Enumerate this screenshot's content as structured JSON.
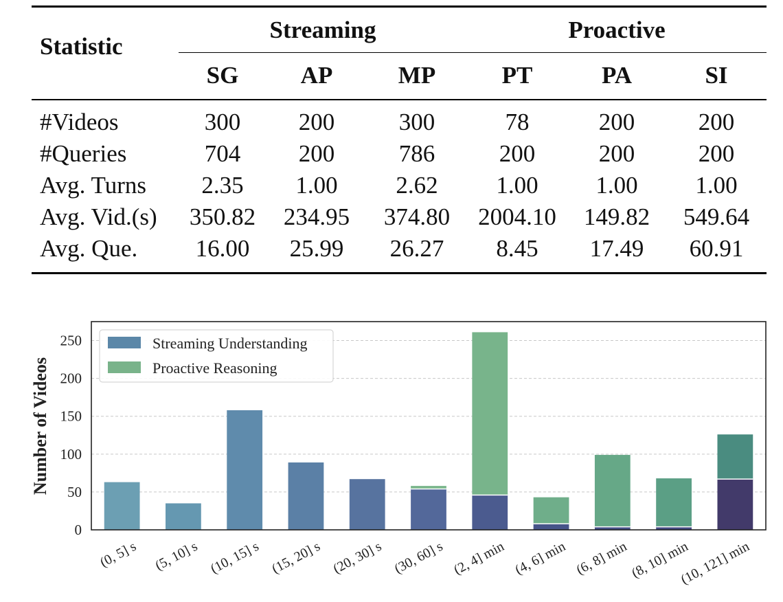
{
  "table": {
    "stat_header": "Statistic",
    "groups": [
      {
        "label": "Streaming",
        "columns": [
          "SG",
          "AP",
          "MP"
        ]
      },
      {
        "label": "Proactive",
        "columns": [
          "PT",
          "PA",
          "SI"
        ]
      }
    ],
    "rows": [
      {
        "label": "#Videos",
        "values": [
          "300",
          "200",
          "300",
          "78",
          "200",
          "200"
        ]
      },
      {
        "label": "#Queries",
        "values": [
          "704",
          "200",
          "786",
          "200",
          "200",
          "200"
        ]
      },
      {
        "label": "Avg. Turns",
        "values": [
          "2.35",
          "1.00",
          "2.62",
          "1.00",
          "1.00",
          "1.00"
        ]
      },
      {
        "label": "Avg. Vid.(s)",
        "values": [
          "350.82",
          "234.95",
          "374.80",
          "2004.10",
          "149.82",
          "549.64"
        ]
      },
      {
        "label": "Avg. Que.",
        "values": [
          "16.00",
          "25.99",
          "26.27",
          "8.45",
          "17.49",
          "60.91"
        ]
      }
    ]
  },
  "chart_data": {
    "type": "bar",
    "stacked": true,
    "ylabel": "Number of Videos",
    "xlabel": "",
    "ylim": [
      0,
      275
    ],
    "yticks": [
      0,
      50,
      100,
      150,
      200,
      250
    ],
    "grid": "horizontal-dashed",
    "legend_position": "top-left",
    "categories": [
      "(0, 5] s",
      "(5, 10] s",
      "(10, 15] s",
      "(15, 20] s",
      "(20, 30] s",
      "(30, 60] s",
      "(2, 4] min",
      "(4, 6] min",
      "(6, 8] min",
      "(8, 10] min",
      "(10, 121] min"
    ],
    "series": [
      {
        "name": "Streaming Understanding",
        "color": "#5b87a8",
        "values": [
          63,
          35,
          158,
          89,
          67,
          54,
          46,
          8,
          4,
          4,
          67
        ]
      },
      {
        "name": "Proactive Reasoning",
        "color": "#79b38a",
        "values": [
          0,
          0,
          0,
          0,
          0,
          4,
          215,
          35,
          95,
          64,
          59
        ]
      }
    ],
    "streaming_bar_colors": [
      "#6c9fb3",
      "#6598b1",
      "#5f8bac",
      "#5b80a6",
      "#57739f",
      "#53689a",
      "#4b5b8f",
      "#465489",
      "#444f86",
      "#434982",
      "#423a6a"
    ],
    "proactive_bar_colors": [
      "#7ab68b",
      "#7ab68b",
      "#7ab68b",
      "#7ab68b",
      "#7ab68b",
      "#7ab68b",
      "#78b48b",
      "#6fae8a",
      "#66a887",
      "#5b9f85",
      "#4a8c80"
    ]
  }
}
